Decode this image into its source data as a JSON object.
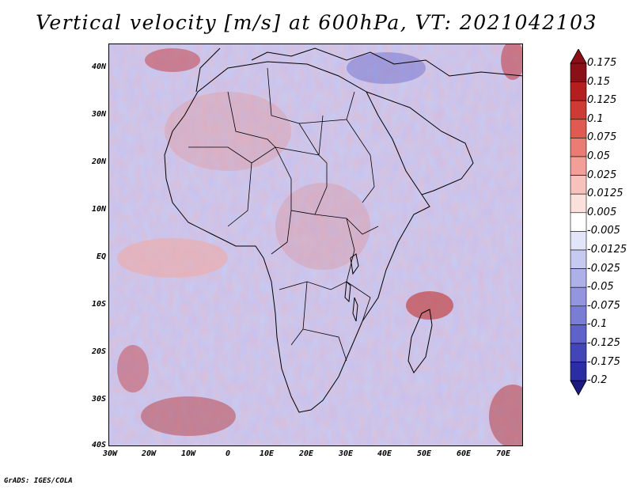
{
  "title": "Vertical velocity [m/s] at 600hPa, VT: 2021042103",
  "footer": "GrADS: IGES/COLA",
  "map": {
    "lat_labels": [
      "40N",
      "30N",
      "20N",
      "10N",
      "EQ",
      "10S",
      "20S",
      "30S",
      "40S"
    ],
    "lon_labels": [
      "30W",
      "20W",
      "10W",
      "0",
      "10E",
      "20E",
      "30E",
      "40E",
      "50E",
      "60E",
      "70E"
    ]
  },
  "colorbar": {
    "labels": [
      "0.175",
      "0.15",
      "0.125",
      "0.1",
      "0.075",
      "0.05",
      "0.025",
      "0.0125",
      "0.005",
      "-0.005",
      "-0.0125",
      "-0.025",
      "-0.05",
      "-0.075",
      "-0.1",
      "-0.125",
      "-0.175",
      "-0.2"
    ],
    "colors": [
      "#8c0f17",
      "#b51d1f",
      "#cf3a35",
      "#e05a52",
      "#ea7c74",
      "#f19f97",
      "#f7c2bc",
      "#fbe0dc",
      "#ffffff",
      "#e2e4f7",
      "#c7caf0",
      "#aeb0e8",
      "#9396de",
      "#7a7dd4",
      "#5f62c8",
      "#4346b8",
      "#2a2da4",
      "#1a1a80"
    ]
  }
}
